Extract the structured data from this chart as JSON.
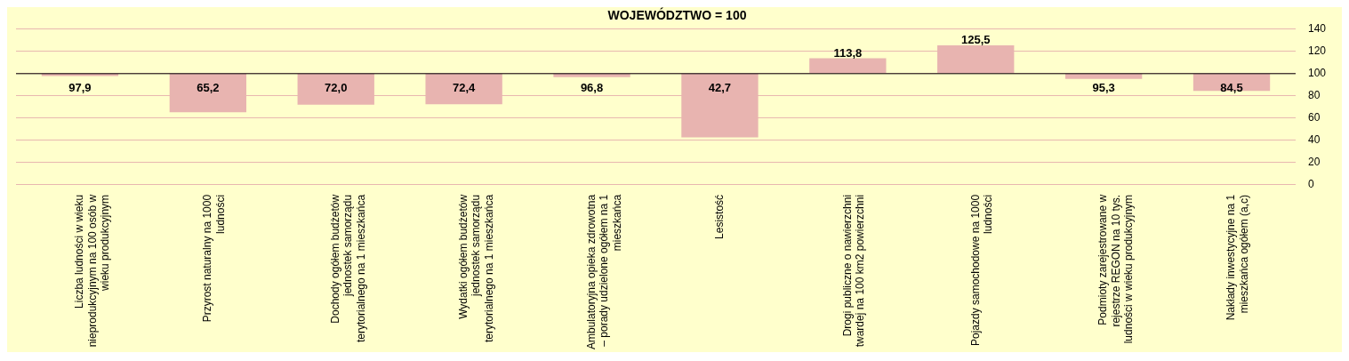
{
  "chart_data": {
    "type": "bar",
    "title": "WOJEWÓDZTWO = 100",
    "categories": [
      "Liczba ludności w wieku nieprodukcyjnym na 100 osób w wieku produkcyjnym",
      "Przyrost naturalny na 1000 ludności",
      "Dochody ogółem budżetów jednostek samorządu terytorialnego na 1 mieszkańca",
      "Wydatki ogółem budżetów jednostek samorządu terytorialnego na 1 mieszkańca",
      "Ambulatoryjna opieka zdrowotna – porady udzielone ogółem na 1 mieszkańca",
      "Lesistość",
      "Drogi publiczne o nawierzchni twardej na 100 km2 powierzchni",
      "Pojazdy samochodowe na 1000 ludności",
      "Podmioty zarejestrowane w rejestrze REGON na 10 tys. ludności w wieku produkcyjnym",
      "Nakłady inwestycyjne na 1 mieszkańca ogółem (a,c)"
    ],
    "values": [
      -2.1,
      -34.8,
      -28.0,
      -27.6,
      -3.2,
      -57.3,
      13.8,
      25.5,
      -4.7,
      -15.5
    ],
    "base": [
      100,
      100,
      100,
      100,
      100,
      100,
      100,
      100,
      100,
      100
    ],
    "value_labels": [
      "97,9",
      "65,2",
      "72,0",
      "72,4",
      "96,8",
      "42,7",
      "113,8",
      "125,5",
      "95,3",
      "84,5"
    ],
    "color": "#e8b4b0",
    "ylim": [
      0,
      140
    ],
    "yticks": [
      0,
      20,
      40,
      60,
      80,
      100,
      120,
      140
    ],
    "ref_lines": [
      {
        "axis": "y",
        "value": 100,
        "color": "#000000"
      }
    ],
    "grid": "y",
    "legend": false
  }
}
